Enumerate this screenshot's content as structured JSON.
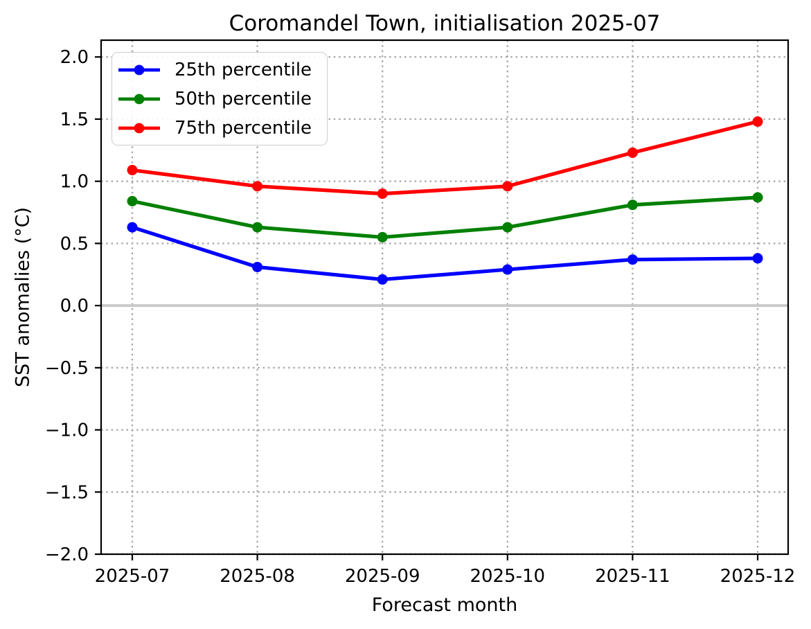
{
  "chart_data": {
    "type": "line",
    "title": "Coromandel Town, initialisation 2025-07",
    "xlabel": "Forecast month",
    "ylabel": "SST anomalies (°C)",
    "categories": [
      "2025-07",
      "2025-08",
      "2025-09",
      "2025-10",
      "2025-11",
      "2025-12"
    ],
    "series": [
      {
        "name": "25th percentile",
        "color": "#0000ff",
        "values": [
          0.63,
          0.31,
          0.21,
          0.29,
          0.37,
          0.38
        ]
      },
      {
        "name": "50th percentile",
        "color": "#008000",
        "values": [
          0.84,
          0.63,
          0.55,
          0.63,
          0.81,
          0.87
        ]
      },
      {
        "name": "75th percentile",
        "color": "#ff0000",
        "values": [
          1.09,
          0.96,
          0.9,
          0.96,
          1.23,
          1.48
        ]
      }
    ],
    "ylim": [
      -2.0,
      2.135
    ],
    "yticks": [
      2.0,
      1.5,
      1.0,
      0.5,
      0.0,
      -0.5,
      -1.0,
      -1.5,
      -2.0
    ],
    "ytick_labels": [
      "2.0",
      "1.5",
      "1.0",
      "0.5",
      "0.0",
      "−0.5",
      "−1.0",
      "−1.5",
      "−2.0"
    ],
    "grid": true,
    "grid_style": "dotted",
    "zero_line": true,
    "legend_position": "upper left",
    "colors": {
      "grid": "#aaaaaa",
      "zero_line": "#c9c9c9",
      "spine": "#000000",
      "background": "#ffffff",
      "text": "#000000"
    }
  }
}
